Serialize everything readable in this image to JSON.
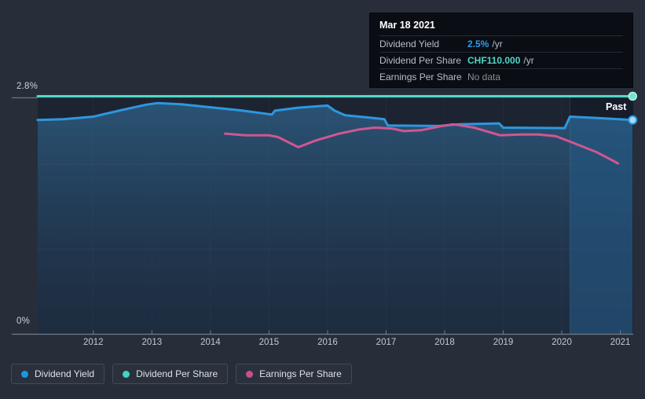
{
  "panel": {
    "past_label": "Past"
  },
  "colors": {
    "background": "#272e3a",
    "plot_background": "#1d2431",
    "axis_line": "#737c8a",
    "axis_text": "#c3c9d2",
    "dividend_yield": "#2d97e0",
    "dividend_per_share": "#4ed9c6",
    "earnings_per_share": "#cf5791"
  },
  "axes": {
    "y": {
      "max_label": "2.8%",
      "min_label": "0%"
    },
    "x": {
      "ticks": [
        "2012",
        "2013",
        "2014",
        "2015",
        "2016",
        "2017",
        "2018",
        "2019",
        "2020",
        "2021"
      ]
    }
  },
  "tooltip": {
    "date": "Mar 18 2021",
    "rows": [
      {
        "label": "Dividend Yield",
        "value": "2.5%",
        "suffix": " /yr",
        "color": "#2f9ce8",
        "emphasis": true
      },
      {
        "label": "Dividend Per Share",
        "value": "CHF110.000",
        "suffix": " /yr",
        "color": "#4fd5c4",
        "emphasis": true
      },
      {
        "label": "Earnings Per Share",
        "value": "No data",
        "suffix": "",
        "color": "#8b9098",
        "emphasis": false
      }
    ]
  },
  "legend": [
    {
      "label": "Dividend Yield",
      "color": "#1e96e0"
    },
    {
      "label": "Dividend Per Share",
      "color": "#41d6c1"
    },
    {
      "label": "Earnings Per Share",
      "color": "#cb4f8d"
    }
  ],
  "chart_data": {
    "type": "line",
    "title": "Dividend history (hover date Mar 18 2021)",
    "x_range": [
      2011.05,
      2021.22
    ],
    "y_range": [
      0,
      2.8
    ],
    "y_axis_labels": {
      "max": "2.8%",
      "min": "0%"
    },
    "x_ticks": [
      2012,
      2013,
      2014,
      2015,
      2016,
      2017,
      2018,
      2019,
      2020,
      2021
    ],
    "grid": true,
    "legend_position": "bottom-left",
    "highlight_region": {
      "from_x": 2020.14,
      "to_x": 2021.22,
      "label": "Past"
    },
    "cursor": {
      "x": 2021.21,
      "date": "Mar 18 2021"
    },
    "series": [
      {
        "name": "Dividend Yield",
        "color": "#2d97e0",
        "unit": "% /yr",
        "axis": "left_percent",
        "value_at_cursor": "2.5% /yr",
        "points": [
          [
            2011.05,
            2.52
          ],
          [
            2011.5,
            2.53
          ],
          [
            2012.0,
            2.56
          ],
          [
            2012.5,
            2.64
          ],
          [
            2012.9,
            2.7
          ],
          [
            2013.1,
            2.72
          ],
          [
            2013.5,
            2.705
          ],
          [
            2014.0,
            2.67
          ],
          [
            2014.5,
            2.635
          ],
          [
            2015.05,
            2.585
          ],
          [
            2015.1,
            2.63
          ],
          [
            2015.5,
            2.665
          ],
          [
            2016.0,
            2.69
          ],
          [
            2016.12,
            2.63
          ],
          [
            2016.3,
            2.575
          ],
          [
            2016.7,
            2.55
          ],
          [
            2016.97,
            2.53
          ],
          [
            2017.03,
            2.455
          ],
          [
            2017.9,
            2.45
          ],
          [
            2018.25,
            2.47
          ],
          [
            2018.93,
            2.48
          ],
          [
            2019.0,
            2.43
          ],
          [
            2020.05,
            2.425
          ],
          [
            2020.14,
            2.56
          ],
          [
            2020.7,
            2.54
          ],
          [
            2021.21,
            2.52
          ]
        ],
        "end_marker": true
      },
      {
        "name": "Dividend Per Share",
        "color": "#4ed9c6",
        "unit": "CHF /yr",
        "axis": "hidden",
        "value_at_cursor": "CHF110.000 /yr",
        "note": "constant line drawn at top of plot (separate hidden CHF scale)",
        "points": [
          [
            2011.05,
            2.8
          ],
          [
            2021.21,
            2.8
          ]
        ],
        "end_marker": true
      },
      {
        "name": "Earnings Per Share",
        "color": "#cf5791",
        "unit": "CHF",
        "axis": "hidden",
        "value_at_cursor": "No data",
        "note": "separate hidden scale; y values are plotted positions on the percent axis",
        "points": [
          [
            2014.25,
            2.36
          ],
          [
            2014.6,
            2.34
          ],
          [
            2015.0,
            2.34
          ],
          [
            2015.15,
            2.32
          ],
          [
            2015.5,
            2.2
          ],
          [
            2015.8,
            2.28
          ],
          [
            2016.2,
            2.36
          ],
          [
            2016.55,
            2.41
          ],
          [
            2016.8,
            2.43
          ],
          [
            2017.1,
            2.42
          ],
          [
            2017.3,
            2.39
          ],
          [
            2017.6,
            2.4
          ],
          [
            2017.95,
            2.45
          ],
          [
            2018.15,
            2.47
          ],
          [
            2018.5,
            2.43
          ],
          [
            2018.95,
            2.34
          ],
          [
            2019.3,
            2.35
          ],
          [
            2019.6,
            2.35
          ],
          [
            2019.9,
            2.33
          ],
          [
            2020.2,
            2.25
          ],
          [
            2020.6,
            2.14
          ],
          [
            2020.96,
            2.01
          ]
        ],
        "end_marker": false
      }
    ]
  }
}
